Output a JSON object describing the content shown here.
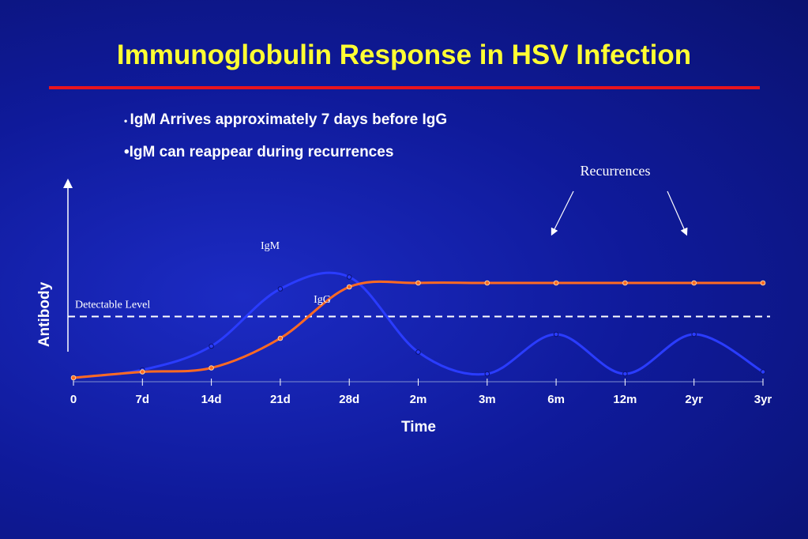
{
  "title": "Immunoglobulin Response in HSV Infection",
  "bullets": [
    "IgM Arrives approximately 7 days before IgG",
    "IgM can reappear during recurrences"
  ],
  "chart_data": {
    "type": "line",
    "categories": [
      "0",
      "7d",
      "14d",
      "21d",
      "28d",
      "2m",
      "3m",
      "6m",
      "12m",
      "2yr",
      "3yr"
    ],
    "series": [
      {
        "name": "IgM",
        "color": "#2a3cff",
        "values": [
          0,
          4,
          16,
          45,
          51,
          13,
          2,
          22,
          2,
          22,
          3
        ]
      },
      {
        "name": "IgG",
        "color": "#ff6a22",
        "values": [
          0,
          3,
          5,
          20,
          46,
          48,
          48,
          48,
          48,
          48,
          48
        ]
      }
    ],
    "ylim": [
      0,
      100
    ],
    "y_label": "Antibody",
    "x_label": "Time",
    "detectable_level": {
      "value": 31,
      "label": "Detectable Level"
    },
    "annotation": "Recurrences"
  }
}
